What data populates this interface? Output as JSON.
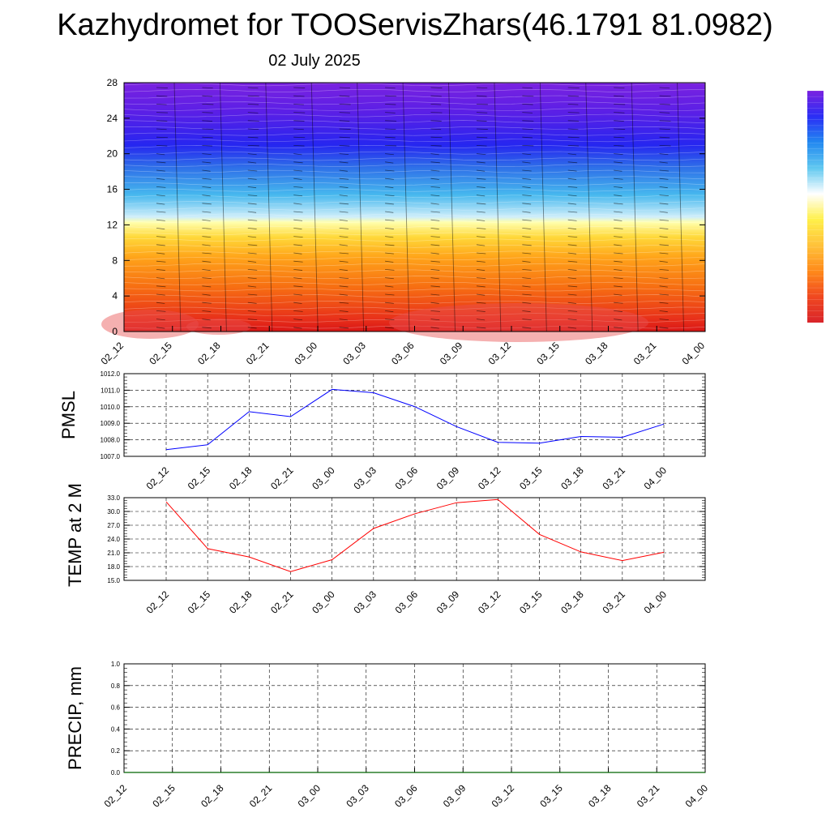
{
  "title": "Kazhydromet for TOOServisZhars(46.1791 81.0982)",
  "subtitle": "02 July 2025",
  "chart_data": [
    {
      "type": "heatmap",
      "name": "temperature-height cross-section with wind barbs",
      "x_ticks": [
        "02_12",
        "02_15",
        "02_18",
        "02_21",
        "03_00",
        "03_03",
        "03_06",
        "03_09",
        "03_12",
        "03_15",
        "03_18",
        "03_21",
        "04_00"
      ],
      "y_ticks": [
        "0",
        "4",
        "8",
        "12",
        "16",
        "20",
        "24",
        "28"
      ],
      "ylim": [
        0,
        28
      ],
      "color_stops": [
        "#d91616",
        "#e8301a",
        "#f76f12",
        "#ffa51a",
        "#ffd93a",
        "#ffffb0",
        "#cfeefa",
        "#46b8ee",
        "#2e6fe8",
        "#2626f0",
        "#5a1fe6",
        "#7a22e0"
      ],
      "colorbar_colors": [
        "#d9242a",
        "#f04820",
        "#ff8a1a",
        "#ffc23a",
        "#fff04a",
        "#ffffff",
        "#60c8f0",
        "#2288f0",
        "#2a2ef5",
        "#7a22e0"
      ]
    },
    {
      "type": "line",
      "ylabel": "PMSL",
      "x": [
        "02_12",
        "02_15",
        "02_18",
        "02_21",
        "03_00",
        "03_03",
        "03_06",
        "03_09",
        "03_12",
        "03_15",
        "03_18",
        "03_21",
        "04_00"
      ],
      "y_ticks": [
        "1007.0",
        "1008.0",
        "1009.0",
        "1010.0",
        "1011.0",
        "1012.0"
      ],
      "ylim": [
        1007,
        1012
      ],
      "series": [
        {
          "color": "#0000ff",
          "values": [
            1007.4,
            1007.7,
            1009.7,
            1009.4,
            1011.05,
            1010.85,
            1010.0,
            1008.8,
            1007.85,
            1007.8,
            1008.2,
            1008.15,
            1008.95
          ]
        }
      ]
    },
    {
      "type": "line",
      "ylabel": "TEMP at 2 M",
      "x": [
        "02_12",
        "02_15",
        "02_18",
        "02_21",
        "03_00",
        "03_03",
        "03_06",
        "03_09",
        "03_12",
        "03_15",
        "03_18",
        "03_21",
        "04_00"
      ],
      "y_ticks": [
        "15.0",
        "18.0",
        "21.0",
        "24.0",
        "27.0",
        "30.0",
        "33.0"
      ],
      "ylim": [
        15,
        33
      ],
      "series": [
        {
          "color": "#ff0000",
          "values": [
            32.1,
            21.9,
            20.1,
            16.9,
            19.5,
            26.3,
            29.5,
            31.9,
            32.6,
            25.0,
            21.2,
            19.3,
            21.1
          ]
        }
      ]
    },
    {
      "type": "line",
      "ylabel": "PRECIP, mm",
      "x": [
        "02_12",
        "02_15",
        "02_18",
        "02_21",
        "03_00",
        "03_03",
        "03_06",
        "03_09",
        "03_12",
        "03_15",
        "03_18",
        "03_21",
        "04_00"
      ],
      "y_ticks": [
        "0.0",
        "0.2",
        "0.4",
        "0.6",
        "0.8",
        "1.0"
      ],
      "ylim": [
        0,
        1
      ],
      "series": [
        {
          "color": "#006400",
          "values": [
            0,
            0,
            0,
            0,
            0,
            0,
            0,
            0,
            0,
            0,
            0,
            0,
            0
          ]
        }
      ]
    }
  ]
}
